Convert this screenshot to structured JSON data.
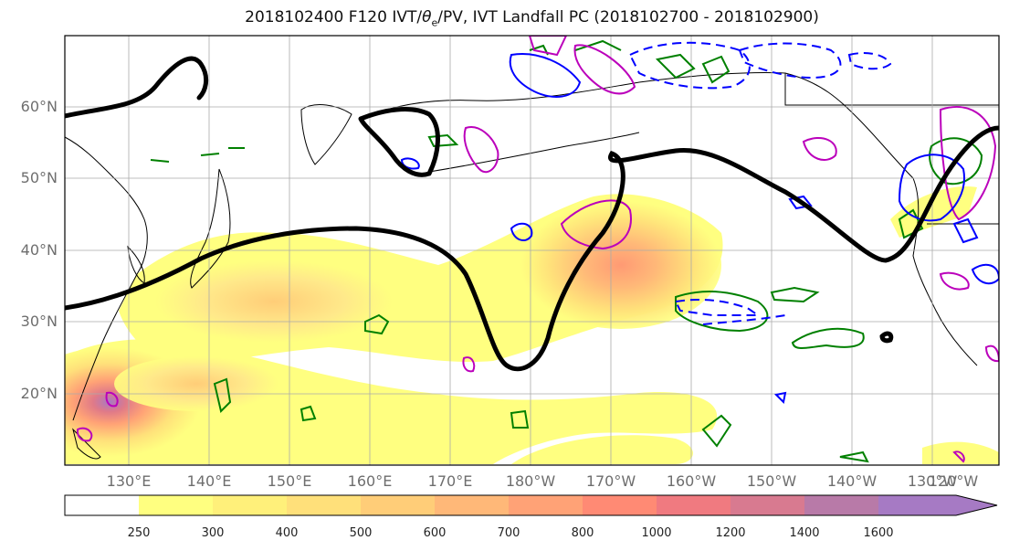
{
  "title": {
    "prefix": "2018102400 F120 IVT/",
    "theta": "θ",
    "sub": "e",
    "suffix": "/PV, IVT Landfall PC (2018102700 - 2018102900)"
  },
  "map": {
    "projection": "PlateCarree",
    "lon_range": [
      120,
      -112
    ],
    "lat_range": [
      10,
      70
    ],
    "lat_labels": [
      {
        "lat": 60,
        "text": "60°N"
      },
      {
        "lat": 50,
        "text": "50°N"
      },
      {
        "lat": 40,
        "text": "40°N"
      },
      {
        "lat": 30,
        "text": "30°N"
      },
      {
        "lat": 20,
        "text": "20°N"
      }
    ],
    "lon_labels": [
      {
        "lon": 130,
        "text": "130°E"
      },
      {
        "lon": 140,
        "text": "140°E"
      },
      {
        "lon": 150,
        "text": "150°E"
      },
      {
        "lon": 160,
        "text": "160°E"
      },
      {
        "lon": 170,
        "text": "170°E"
      },
      {
        "lon": 180,
        "text": "180°W"
      },
      {
        "lon": 190,
        "text": "170°W"
      },
      {
        "lon": 200,
        "text": "160°W"
      },
      {
        "lon": 210,
        "text": "150°W"
      },
      {
        "lon": 220,
        "text": "140°W"
      },
      {
        "lon": 230,
        "text": "130°W"
      },
      {
        "lon": 240,
        "text": "120°W"
      }
    ],
    "contour_colors": {
      "theta_e": "#000000",
      "pv_positive": "#0000ff",
      "ivt_pc": "#008000",
      "pv_magenta": "#bb00bb"
    }
  },
  "colorbar": {
    "levels": [
      "250",
      "300",
      "400",
      "500",
      "600",
      "700",
      "800",
      "1000",
      "1200",
      "1400",
      "1600"
    ],
    "colors": [
      "#ffffff",
      "#ffff80",
      "#fff07a",
      "#ffe07a",
      "#ffcd78",
      "#ffb878",
      "#ffa276",
      "#ff8a74",
      "#f07a80",
      "#d87a90",
      "#b87aa8",
      "#a67ac4"
    ],
    "extend": "max"
  }
}
